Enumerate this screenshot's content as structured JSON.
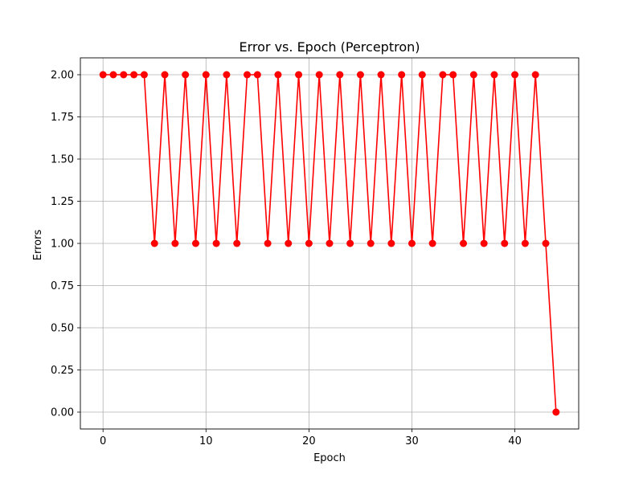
{
  "chart_data": {
    "type": "line",
    "title": "Error vs. Epoch (Perceptron)",
    "xlabel": "Epoch",
    "ylabel": "Errors",
    "xlim": [
      -2.2,
      46.2
    ],
    "ylim": [
      -0.1,
      2.1
    ],
    "xticks": [
      0,
      10,
      20,
      30,
      40
    ],
    "yticks": [
      0.0,
      0.25,
      0.5,
      0.75,
      1.0,
      1.25,
      1.5,
      1.75,
      2.0
    ],
    "grid": true,
    "series": [
      {
        "name": "Errors",
        "color": "#ff0000",
        "marker": "circle",
        "x": [
          0,
          1,
          2,
          3,
          4,
          5,
          6,
          7,
          8,
          9,
          10,
          11,
          12,
          13,
          14,
          15,
          16,
          17,
          18,
          19,
          20,
          21,
          22,
          23,
          24,
          25,
          26,
          27,
          28,
          29,
          30,
          31,
          32,
          33,
          34,
          35,
          36,
          37,
          38,
          39,
          40,
          41,
          42,
          43,
          44
        ],
        "y": [
          2,
          2,
          2,
          2,
          2,
          1,
          2,
          1,
          2,
          1,
          2,
          1,
          2,
          1,
          2,
          2,
          1,
          2,
          1,
          2,
          1,
          2,
          1,
          2,
          1,
          2,
          1,
          2,
          1,
          2,
          1,
          2,
          1,
          2,
          2,
          1,
          2,
          1,
          2,
          1,
          2,
          1,
          2,
          1,
          0
        ]
      }
    ]
  }
}
